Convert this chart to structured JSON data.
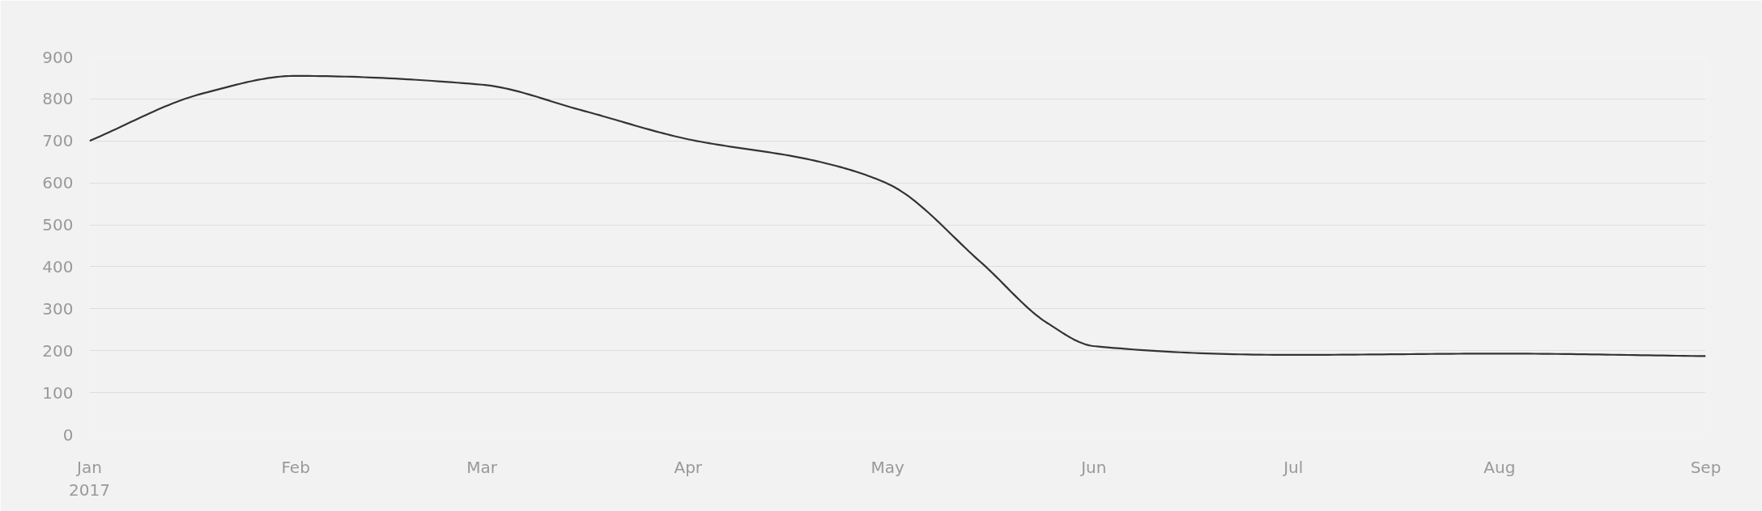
{
  "chart_data": {
    "type": "line",
    "x": [
      "2017-01-01",
      "2017-01-18",
      "2017-02-01",
      "2017-03-01",
      "2017-03-16",
      "2017-04-01",
      "2017-04-20",
      "2017-05-01",
      "2017-05-15",
      "2017-05-25",
      "2017-06-01",
      "2017-07-01",
      "2017-08-01",
      "2017-09-01"
    ],
    "series": [
      {
        "color": "#333333",
        "values": [
          700,
          813,
          855,
          834,
          773,
          704,
          653,
          598,
          411,
          266,
          211,
          190,
          193,
          187
        ]
      }
    ],
    "xlim": [
      "2017-01-01",
      "2017-09-01"
    ],
    "xticks": [
      {
        "value": "2017-01-01",
        "label": "Jan\n2017"
      },
      {
        "value": "2017-02-01",
        "label": "Feb"
      },
      {
        "value": "2017-03-01",
        "label": "Mar"
      },
      {
        "value": "2017-04-01",
        "label": "Apr"
      },
      {
        "value": "2017-05-01",
        "label": "May"
      },
      {
        "value": "2017-06-01",
        "label": "Jun"
      },
      {
        "value": "2017-07-01",
        "label": "Jul"
      },
      {
        "value": "2017-08-01",
        "label": "Aug"
      },
      {
        "value": "2017-09-01",
        "label": "Sep"
      }
    ],
    "ylim": [
      0,
      900
    ],
    "yticks": [
      0,
      100,
      200,
      300,
      400,
      500,
      600,
      700,
      800,
      900
    ],
    "grid": "y",
    "marker": "none",
    "line_style": "solid"
  }
}
